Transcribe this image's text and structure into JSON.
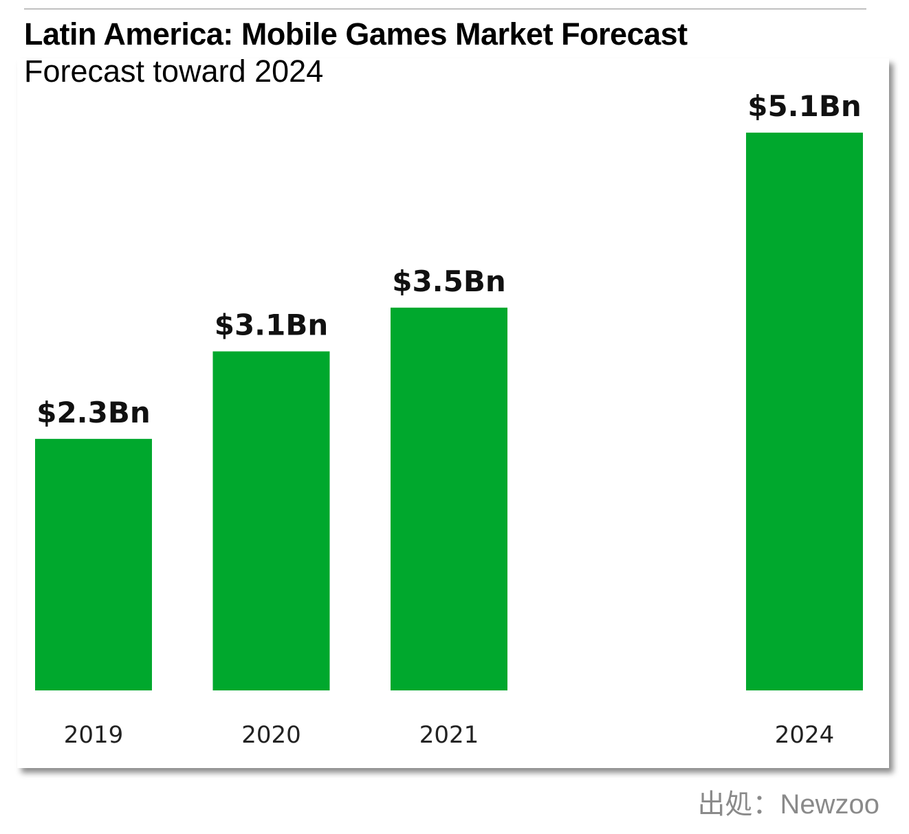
{
  "chart_data": {
    "type": "bar",
    "title": "Latin America: Mobile Games Market Forecast",
    "subtitle": "Forecast toward 2024",
    "categories": [
      "2019",
      "2020",
      "2021",
      "2024"
    ],
    "values": [
      2.3,
      3.1,
      3.5,
      5.1
    ],
    "data_labels": [
      "$2.3Bn",
      "$3.1Bn",
      "$3.5Bn",
      "$5.1Bn"
    ],
    "unit": "USD billions",
    "xlabel": "",
    "ylabel": "",
    "ylim": [
      0,
      5.1
    ],
    "grid": false,
    "bar_color": "#00a82d"
  },
  "source": "出処：Newzoo"
}
